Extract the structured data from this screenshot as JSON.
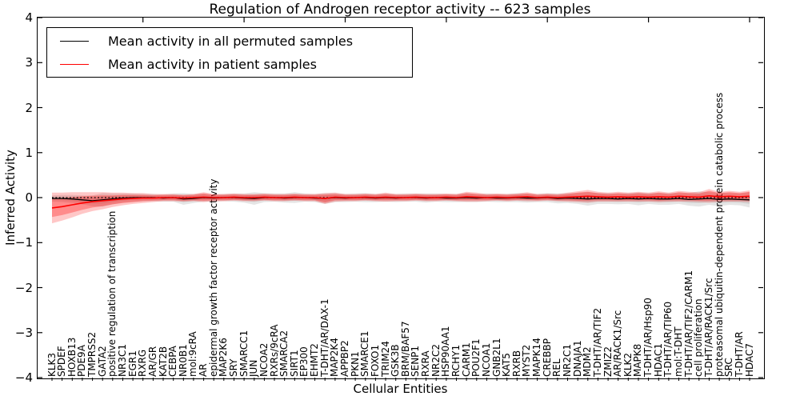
{
  "chart_data": {
    "type": "line",
    "title": "Regulation of Androgen receptor activity -- 623 samples",
    "xlabel": "Cellular Entities",
    "ylabel": "Inferred Activity",
    "ylim": [
      -4,
      4
    ],
    "yticks": [
      {
        "v": 4,
        "label": "4"
      },
      {
        "v": 3,
        "label": "3"
      },
      {
        "v": 2,
        "label": "2"
      },
      {
        "v": 1,
        "label": "1"
      },
      {
        "v": 0,
        "label": "0"
      },
      {
        "v": -1,
        "label": "−1"
      },
      {
        "v": -2,
        "label": "−2"
      },
      {
        "v": -3,
        "label": "−3"
      },
      {
        "v": -4,
        "label": "−4"
      }
    ],
    "grid": false,
    "legend_position": "upper left",
    "legend": [
      {
        "label": "Mean activity in all permuted samples",
        "color": "#000000"
      },
      {
        "label": "Mean activity in patient samples",
        "color": "#ff0000"
      }
    ],
    "zero_line": {
      "style": "dotted",
      "color": "#000000",
      "y": 0
    },
    "categories": [
      "KLK3",
      "SPDEF",
      "HOXB13",
      "PDE9A",
      "TMPRSS2",
      "GATA2",
      "positive regulation of transcription",
      "NR3C1",
      "EGR1",
      "RXRG",
      "AR/GR",
      "KAT2B",
      "CEBPA",
      "NR0B1",
      "mol:9cRA",
      "AR",
      "epidermal growth factor receptor activity",
      "MAP2K6",
      "SRY",
      "SMARCC1",
      "JUN",
      "NCOA2",
      "RXRs/9cRA",
      "SMARCA2",
      "SIRT1",
      "EP300",
      "EHMT2",
      "T-DHT/AR/DAX-1",
      "MAP2K4",
      "APPBP2",
      "PKN1",
      "SMARCE1",
      "FOXO1",
      "TRIM24",
      "GSK3B",
      "BRM/BAF57",
      "SENP1",
      "RXRA",
      "NR2C2",
      "HSP90AA1",
      "RCHY1",
      "CARM1",
      "POU2F1",
      "NCOA1",
      "GNB2L1",
      "KAT5",
      "RXRB",
      "MYST2",
      "MAPK14",
      "CREBBP",
      "REL",
      "NR2C1",
      "DNAJA1",
      "MDM2",
      "T-DHT/AR/TIF2",
      "ZMIZ2",
      "AR/RACK1/Src",
      "KLK2",
      "MAPK8",
      "T-DHT/AR/Hsp90",
      "HDAC1",
      "T-DHT/AR/TIP60",
      "mol:T-DHT",
      "T-DHT/AR/TIF2/CARM1",
      "cell proliferation",
      "T-DHT/AR/RACK1/Src",
      "proteasomal ubiquitin-dependent protein catabolic process",
      "SRC",
      "T-DHT/AR",
      "HDAC7"
    ],
    "series": [
      {
        "name": "Mean activity in all permuted samples",
        "color": "#000000",
        "values": [
          -0.02,
          -0.02,
          -0.03,
          -0.05,
          -0.07,
          -0.05,
          -0.03,
          -0.01,
          0,
          0,
          0,
          -0.01,
          0,
          -0.03,
          -0.02,
          0,
          -0.01,
          0,
          0,
          -0.01,
          -0.02,
          0,
          0,
          -0.01,
          0,
          0,
          -0.01,
          -0.02,
          0,
          -0.01,
          0,
          0,
          -0.01,
          0,
          -0.01,
          0,
          0,
          -0.01,
          0,
          -0.01,
          -0.01,
          0,
          -0.01,
          0,
          -0.01,
          -0.01,
          0,
          -0.01,
          -0.01,
          0,
          -0.02,
          -0.01,
          -0.02,
          -0.03,
          -0.02,
          -0.02,
          -0.03,
          -0.02,
          -0.03,
          -0.02,
          -0.03,
          -0.03,
          -0.02,
          -0.04,
          -0.03,
          -0.02,
          -0.04,
          -0.03,
          -0.04,
          -0.05
        ],
        "band_halfwidth": [
          0.07,
          0.08,
          0.09,
          0.1,
          0.12,
          0.15,
          0.12,
          0.1,
          0.09,
          0.08,
          0.08,
          0.08,
          0.09,
          0.13,
          0.1,
          0.09,
          0.08,
          0.08,
          0.09,
          0.1,
          0.14,
          0.1,
          0.09,
          0.1,
          0.12,
          0.09,
          0.09,
          0.12,
          0.1,
          0.09,
          0.09,
          0.1,
          0.09,
          0.09,
          0.09,
          0.09,
          0.09,
          0.1,
          0.09,
          0.09,
          0.09,
          0.1,
          0.09,
          0.09,
          0.09,
          0.09,
          0.1,
          0.1,
          0.09,
          0.1,
          0.11,
          0.11,
          0.12,
          0.15,
          0.12,
          0.12,
          0.12,
          0.12,
          0.14,
          0.12,
          0.13,
          0.13,
          0.12,
          0.14,
          0.17,
          0.14,
          0.15,
          0.13,
          0.13,
          0.17
        ]
      },
      {
        "name": "Mean activity in patient samples",
        "color": "#ff0000",
        "values": [
          -0.23,
          -0.2,
          -0.16,
          -0.12,
          -0.09,
          -0.07,
          -0.05,
          -0.03,
          -0.02,
          -0.01,
          -0.01,
          0,
          0,
          -0.01,
          0,
          0.01,
          0,
          0,
          0.01,
          0,
          0,
          0.01,
          0,
          0,
          0.01,
          0,
          0,
          -0.02,
          0.01,
          0,
          0,
          0.01,
          0,
          0.01,
          0,
          0,
          0.01,
          0,
          0,
          0.01,
          0,
          0.02,
          0.01,
          0,
          0.01,
          0,
          0.01,
          0.02,
          0,
          0.01,
          0,
          0.01,
          0.02,
          0.03,
          0.02,
          0.01,
          0.02,
          0.01,
          0.02,
          0.01,
          0.02,
          0.01,
          0.03,
          0.02,
          0.01,
          0.04,
          0.02,
          0.03,
          0.02,
          0.03
        ],
        "band_inner_halfwidth": [
          0.2,
          0.19,
          0.17,
          0.15,
          0.13,
          0.12,
          0.1,
          0.09,
          0.08,
          0.07,
          0.06,
          0.06,
          0.06,
          0.06,
          0.06,
          0.08,
          0.06,
          0.06,
          0.06,
          0.06,
          0.06,
          0.06,
          0.06,
          0.06,
          0.06,
          0.06,
          0.06,
          0.09,
          0.07,
          0.06,
          0.06,
          0.06,
          0.06,
          0.07,
          0.06,
          0.06,
          0.06,
          0.06,
          0.06,
          0.06,
          0.06,
          0.08,
          0.07,
          0.06,
          0.06,
          0.06,
          0.06,
          0.07,
          0.06,
          0.06,
          0.06,
          0.07,
          0.09,
          0.1,
          0.08,
          0.07,
          0.08,
          0.07,
          0.08,
          0.07,
          0.09,
          0.07,
          0.09,
          0.08,
          0.08,
          0.11,
          0.08,
          0.09,
          0.08,
          0.1
        ],
        "band_outer_halfwidth": [
          0.34,
          0.31,
          0.28,
          0.24,
          0.21,
          0.19,
          0.16,
          0.14,
          0.12,
          0.11,
          0.09,
          0.08,
          0.08,
          0.08,
          0.08,
          0.11,
          0.08,
          0.08,
          0.08,
          0.08,
          0.08,
          0.08,
          0.08,
          0.08,
          0.08,
          0.08,
          0.08,
          0.12,
          0.1,
          0.08,
          0.08,
          0.08,
          0.08,
          0.1,
          0.08,
          0.08,
          0.08,
          0.08,
          0.08,
          0.08,
          0.08,
          0.11,
          0.1,
          0.08,
          0.08,
          0.08,
          0.08,
          0.1,
          0.08,
          0.08,
          0.08,
          0.1,
          0.12,
          0.14,
          0.11,
          0.1,
          0.11,
          0.1,
          0.11,
          0.1,
          0.12,
          0.1,
          0.12,
          0.11,
          0.11,
          0.15,
          0.11,
          0.12,
          0.11,
          0.13
        ]
      }
    ]
  }
}
